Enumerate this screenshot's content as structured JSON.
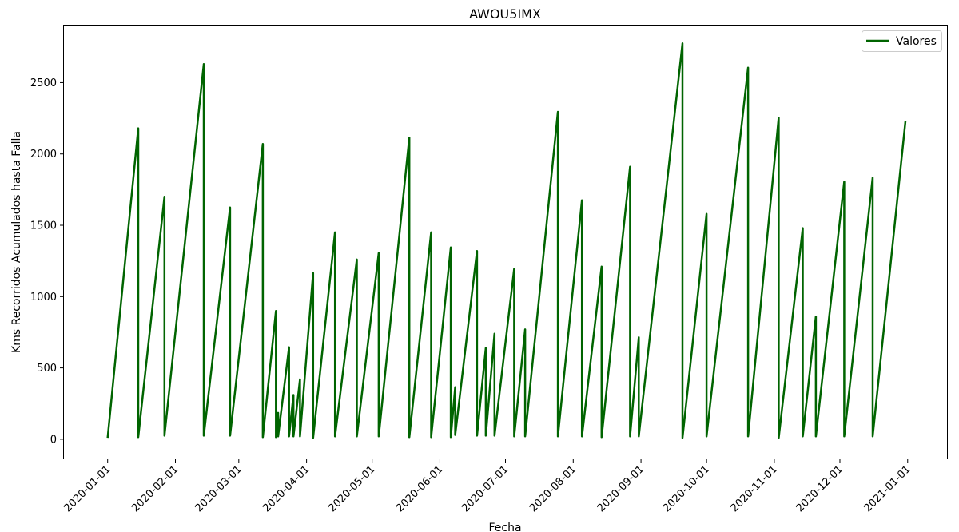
{
  "chart_data": {
    "type": "line",
    "title": "AWOU5IMX",
    "xlabel": "Fecha",
    "ylabel": "Kms Recorridos Acumulados hasta Falla",
    "ylim": [
      -135,
      2900
    ],
    "xlim": [
      "2019-12-12",
      "2021-01-19"
    ],
    "x_ticks": [
      "2020-01-01",
      "2020-02-01",
      "2020-03-01",
      "2020-04-01",
      "2020-05-01",
      "2020-06-01",
      "2020-07-01",
      "2020-08-01",
      "2020-09-01",
      "2020-10-01",
      "2020-11-01",
      "2020-12-01",
      "2021-01-01"
    ],
    "y_ticks": [
      0,
      500,
      1000,
      1500,
      2000,
      2500
    ],
    "grid": false,
    "legend_position": "top-right",
    "line_color": "#006400",
    "series": [
      {
        "name": "Valores",
        "color": "#006400",
        "points": [
          [
            "2020-01-01",
            10
          ],
          [
            "2020-01-15",
            2180
          ],
          [
            "2020-01-15",
            15
          ],
          [
            "2020-01-27",
            1700
          ],
          [
            "2020-01-27",
            25
          ],
          [
            "2020-02-14",
            2630
          ],
          [
            "2020-02-14",
            25
          ],
          [
            "2020-02-26",
            1625
          ],
          [
            "2020-02-26",
            25
          ],
          [
            "2020-03-12",
            2070
          ],
          [
            "2020-03-12",
            15
          ],
          [
            "2020-03-18",
            900
          ],
          [
            "2020-03-18",
            15
          ],
          [
            "2020-03-19",
            185
          ],
          [
            "2020-03-19",
            20
          ],
          [
            "2020-03-24",
            645
          ],
          [
            "2020-03-24",
            20
          ],
          [
            "2020-03-26",
            310
          ],
          [
            "2020-03-26",
            20
          ],
          [
            "2020-03-29",
            420
          ],
          [
            "2020-03-29",
            20
          ],
          [
            "2020-04-04",
            1165
          ],
          [
            "2020-04-04",
            10
          ],
          [
            "2020-04-14",
            1450
          ],
          [
            "2020-04-14",
            20
          ],
          [
            "2020-04-24",
            1260
          ],
          [
            "2020-04-24",
            20
          ],
          [
            "2020-05-04",
            1305
          ],
          [
            "2020-05-04",
            20
          ],
          [
            "2020-05-18",
            2115
          ],
          [
            "2020-05-18",
            15
          ],
          [
            "2020-05-28",
            1450
          ],
          [
            "2020-05-28",
            15
          ],
          [
            "2020-06-06",
            1345
          ],
          [
            "2020-06-06",
            15
          ],
          [
            "2020-06-08",
            365
          ],
          [
            "2020-06-08",
            30
          ],
          [
            "2020-06-18",
            1320
          ],
          [
            "2020-06-18",
            25
          ],
          [
            "2020-06-22",
            640
          ],
          [
            "2020-06-22",
            25
          ],
          [
            "2020-06-26",
            740
          ],
          [
            "2020-06-26",
            25
          ],
          [
            "2020-07-05",
            1195
          ],
          [
            "2020-07-05",
            20
          ],
          [
            "2020-07-10",
            770
          ],
          [
            "2020-07-10",
            20
          ],
          [
            "2020-07-25",
            2295
          ],
          [
            "2020-07-25",
            20
          ],
          [
            "2020-08-05",
            1675
          ],
          [
            "2020-08-05",
            20
          ],
          [
            "2020-08-14",
            1210
          ],
          [
            "2020-08-14",
            15
          ],
          [
            "2020-08-27",
            1910
          ],
          [
            "2020-08-27",
            20
          ],
          [
            "2020-08-31",
            715
          ],
          [
            "2020-08-31",
            20
          ],
          [
            "2020-09-20",
            2775
          ],
          [
            "2020-09-20",
            10
          ],
          [
            "2020-10-01",
            1580
          ],
          [
            "2020-10-01",
            20
          ],
          [
            "2020-10-20",
            2605
          ],
          [
            "2020-10-20",
            20
          ],
          [
            "2020-11-03",
            2255
          ],
          [
            "2020-11-03",
            10
          ],
          [
            "2020-11-14",
            1480
          ],
          [
            "2020-11-14",
            20
          ],
          [
            "2020-11-20",
            860
          ],
          [
            "2020-11-20",
            20
          ],
          [
            "2020-12-03",
            1805
          ],
          [
            "2020-12-03",
            20
          ],
          [
            "2020-12-16",
            1835
          ],
          [
            "2020-12-16",
            20
          ],
          [
            "2020-12-31",
            2230
          ]
        ]
      }
    ]
  }
}
